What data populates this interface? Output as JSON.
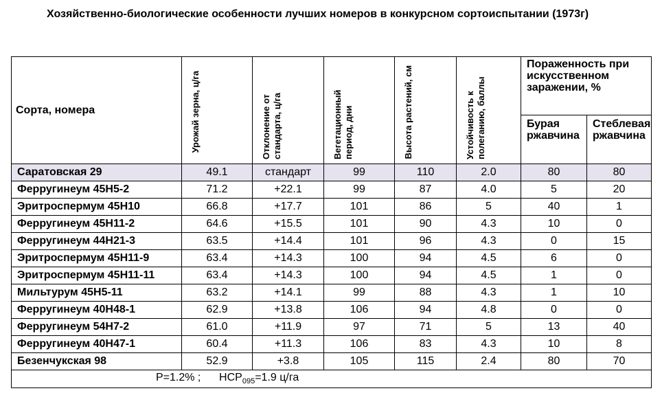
{
  "title": "Хозяйственно-биологические  особенности лучших номеров в конкурсном сортоиспытании (1973г)",
  "headers": {
    "name": "Сорта, номера",
    "yield": "Урожай зерна, ц/га",
    "deviation": "Отклонение от стандарта, ц/га",
    "vegetation": "Вегетационный период, дни",
    "height": "Высота растений, см",
    "lodging": "Устойчивость к полеганию, баллы",
    "damage_group": "Пораженность при искусственном заражении, %",
    "brown_rust": "Бурая ржавчина",
    "stem_rust": "Стеблевая ржавчина"
  },
  "rows": [
    {
      "name": "Саратовская 29",
      "yield": "49.1",
      "deviation": "стандарт",
      "vegetation": "99",
      "height": "110",
      "lodging": "2.0",
      "brown": "80",
      "stem": "80"
    },
    {
      "name": "Ферругинеум 45Н5-2",
      "yield": "71.2",
      "deviation": "+22.1",
      "vegetation": "99",
      "height": "87",
      "lodging": "4.0",
      "brown": "5",
      "stem": "20"
    },
    {
      "name": "Эритроспермум 45Н10",
      "yield": "66.8",
      "deviation": "+17.7",
      "vegetation": "101",
      "height": "86",
      "lodging": "5",
      "brown": "40",
      "stem": "1"
    },
    {
      "name": "Ферругинеум 45Н11-2",
      "yield": "64.6",
      "deviation": "+15.5",
      "vegetation": "101",
      "height": "90",
      "lodging": "4.3",
      "brown": "10",
      "stem": "0"
    },
    {
      "name": "Ферругинеум 44Н21-3",
      "yield": "63.5",
      "deviation": "+14.4",
      "vegetation": "101",
      "height": "96",
      "lodging": "4.3",
      "brown": "0",
      "stem": "15"
    },
    {
      "name": "Эритроспермум 45Н11-9",
      "yield": "63.4",
      "deviation": "+14.3",
      "vegetation": "100",
      "height": "94",
      "lodging": "4.5",
      "brown": "6",
      "stem": "0"
    },
    {
      "name": "Эритроспермум 45Н11-11",
      "yield": "63.4",
      "deviation": "+14.3",
      "vegetation": "100",
      "height": "94",
      "lodging": "4.5",
      "brown": "1",
      "stem": "0"
    },
    {
      "name": "Мильтурум 45Н5-11",
      "yield": "63.2",
      "deviation": "+14.1",
      "vegetation": "99",
      "height": "88",
      "lodging": "4.3",
      "brown": "1",
      "stem": "10"
    },
    {
      "name": "Ферругинеум 40Н48-1",
      "yield": "62.9",
      "deviation": "+13.8",
      "vegetation": "106",
      "height": "94",
      "lodging": "4.8",
      "brown": "0",
      "stem": "0"
    },
    {
      "name": "Ферругинеум 54Н7-2",
      "yield": "61.0",
      "deviation": "+11.9",
      "vegetation": "97",
      "height": "71",
      "lodging": "5",
      "brown": "13",
      "stem": "40"
    },
    {
      "name": "Ферругинеум 40Н47-1",
      "yield": "60.4",
      "deviation": "+11.3",
      "vegetation": "106",
      "height": "83",
      "lodging": "4.3",
      "brown": "10",
      "stem": "8"
    },
    {
      "name": "Безенчукская 98",
      "yield": "52.9",
      "deviation": "+3.8",
      "vegetation": "105",
      "height": "115",
      "lodging": "2.4",
      "brown": "80",
      "stem": "70"
    }
  ],
  "footer": {
    "p_text": "P=1.2% ;",
    "hcp_label": "НСР",
    "hcp_sub": "095",
    "hcp_value": "=1.9 ц/га"
  }
}
